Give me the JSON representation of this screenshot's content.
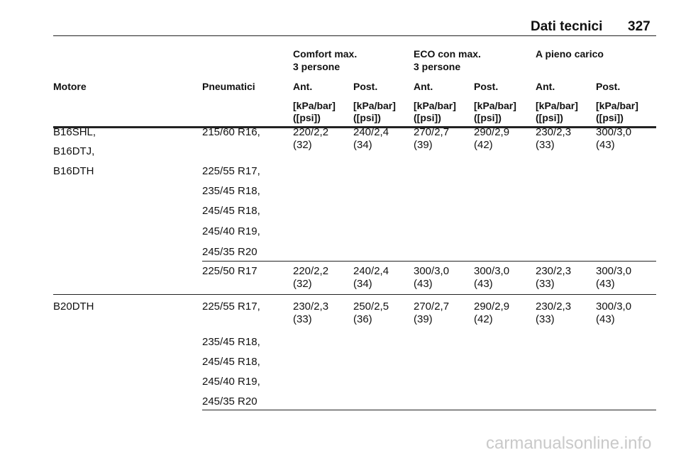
{
  "header": {
    "section": "Dati tecnici",
    "page": "327"
  },
  "table": {
    "groups": [
      {
        "line1": "Comfort max.",
        "line2": "3 persone"
      },
      {
        "line1": "ECO con max.",
        "line2": "3 persone"
      },
      {
        "line1": "A pieno carico",
        "line2": null
      }
    ],
    "columns": [
      "Motore",
      "Pneumatici",
      "Ant.",
      "Post.",
      "Ant.",
      "Post.",
      "Ant.",
      "Post."
    ],
    "units": [
      {
        "unit": "[kPa/bar]",
        "psi": "([psi])"
      },
      {
        "unit": "[kPa/bar]",
        "psi": "([psi])"
      },
      {
        "unit": "[kPa/bar]",
        "psi": "([psi])"
      },
      {
        "unit": "[kPa/bar]",
        "psi": "([psi])"
      },
      {
        "unit": "[kPa/bar]",
        "psi": "([psi])"
      },
      {
        "unit": "[kPa/bar]",
        "psi": "([psi])"
      }
    ],
    "rows": [
      {
        "engine": [
          "B16SHL,",
          "B16DTJ,",
          "B16DTH"
        ],
        "tires": [
          "215/60 R16,",
          "225/55 R17,",
          "235/45 R18,",
          "245/45 R18,",
          "245/40 R19,",
          "245/35 R20"
        ],
        "values": [
          {
            "kpa": "220/2,2",
            "psi": "(32)"
          },
          {
            "kpa": "240/2,4",
            "psi": "(34)"
          },
          {
            "kpa": "270/2,7",
            "psi": "(39)"
          },
          {
            "kpa": "290/2,9",
            "psi": "(42)"
          },
          {
            "kpa": "230/2,3",
            "psi": "(33)"
          },
          {
            "kpa": "300/3,0",
            "psi": "(43)"
          }
        ]
      },
      {
        "engine": [],
        "tires": [
          "225/50 R17"
        ],
        "values": [
          {
            "kpa": "220/2,2",
            "psi": "(32)"
          },
          {
            "kpa": "240/2,4",
            "psi": "(34)"
          },
          {
            "kpa": "300/3,0",
            "psi": "(43)"
          },
          {
            "kpa": "300/3,0",
            "psi": "(43)"
          },
          {
            "kpa": "230/2,3",
            "psi": "(33)"
          },
          {
            "kpa": "300/3,0",
            "psi": "(43)"
          }
        ]
      },
      {
        "engine": [
          "B20DTH"
        ],
        "tires": [
          "225/55 R17,",
          "235/45 R18,",
          "245/45 R18,",
          "245/40 R19,",
          "245/35 R20"
        ],
        "values": [
          {
            "kpa": "230/2,3",
            "psi": "(33)"
          },
          {
            "kpa": "250/2,5",
            "psi": "(36)"
          },
          {
            "kpa": "270/2,7",
            "psi": "(39)"
          },
          {
            "kpa": "290/2,9",
            "psi": "(42)"
          },
          {
            "kpa": "230/2,3",
            "psi": "(33)"
          },
          {
            "kpa": "300/3,0",
            "psi": "(43)"
          }
        ]
      }
    ]
  },
  "watermark": "carmanualsonline.info"
}
